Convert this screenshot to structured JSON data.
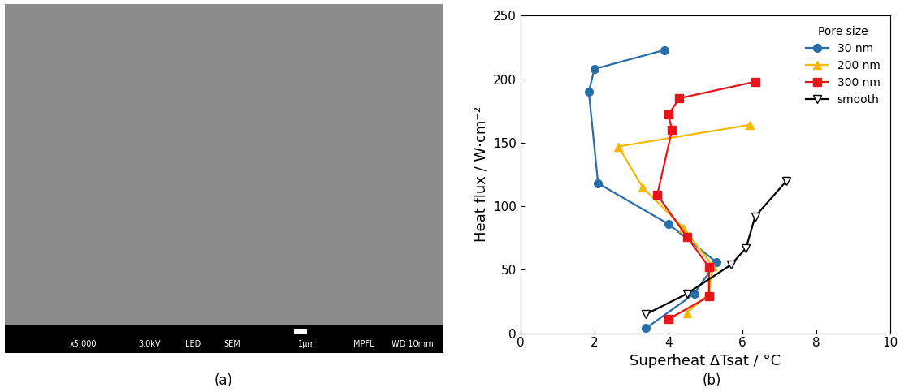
{
  "image_panel": {
    "panel_label": "(a)",
    "info_bar": [
      "x5,000",
      "3.0kV",
      "LED",
      "SEM",
      "WD 10mm"
    ],
    "scale_bar": "1μm",
    "operator": "MPFL"
  },
  "chart_data": {
    "type": "line",
    "panel_label": "(b)",
    "x_label": "Superheat ΔTsat / °C",
    "y_label": "Heat flux / W·cm⁻²",
    "xlim": [
      0,
      10
    ],
    "xticks": [
      0,
      2,
      4,
      6,
      8,
      10
    ],
    "ylim": [
      0,
      250
    ],
    "yticks": [
      0,
      50,
      100,
      150,
      200,
      250
    ],
    "legend": "upper right",
    "legend_title": "Pore size",
    "series": [
      {
        "name": "30 nm",
        "color": "#2a6ea8",
        "marker": "circle",
        "line_style": "solid",
        "x": [
          3.4,
          4.7,
          5.3,
          4.0,
          2.1,
          1.85,
          2.0,
          3.9
        ],
        "values": [
          4,
          31,
          56,
          86,
          118,
          190,
          208,
          223
        ]
      },
      {
        "name": "200 nm",
        "color": "#f5b800",
        "marker": "triangle_up",
        "line_style": "solid",
        "x": [
          4.5,
          5.1,
          5.2,
          4.4,
          3.3,
          2.65,
          6.2
        ],
        "values": [
          16,
          31,
          53,
          83,
          115,
          147,
          164
        ]
      },
      {
        "name": "300 nm",
        "color": "#e8141a",
        "marker": "square",
        "line_style": "solid",
        "x": [
          4.0,
          5.1,
          5.1,
          4.5,
          3.7,
          4.1,
          4.0,
          4.3,
          6.35
        ],
        "values": [
          11,
          29,
          52,
          76,
          109,
          160,
          172,
          185,
          198
        ]
      },
      {
        "name": "smooth",
        "color": "#000000",
        "marker": "triangle_down",
        "line_style": "solid",
        "x": [
          3.4,
          4.5,
          5.7,
          6.1,
          6.35,
          7.2
        ],
        "values": [
          15,
          31,
          54,
          67,
          92,
          120
        ]
      }
    ]
  }
}
